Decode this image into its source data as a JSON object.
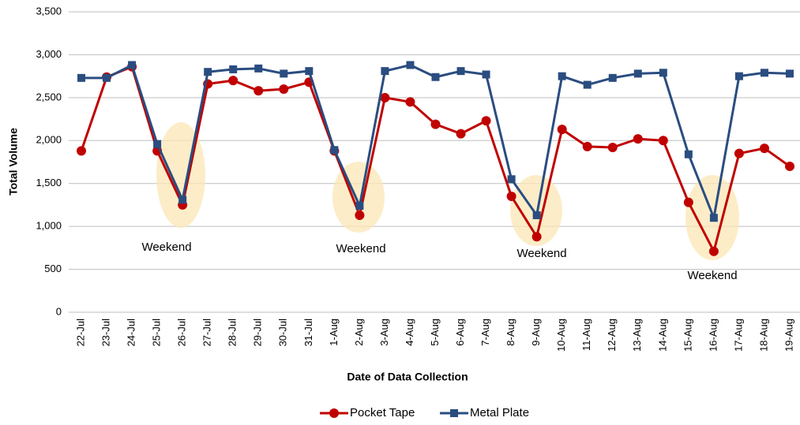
{
  "chart_data": {
    "type": "line",
    "y_label": "Total Volume",
    "x_label": "Date of Data Collection",
    "categories": [
      "22-Jul",
      "23-Jul",
      "24-Jul",
      "25-Jul",
      "26-Jul",
      "27-Jul",
      "28-Jul",
      "29-Jul",
      "30-Jul",
      "31-Jul",
      "1-Aug",
      "2-Aug",
      "3-Aug",
      "4-Aug",
      "5-Aug",
      "6-Aug",
      "7-Aug",
      "8-Aug",
      "9-Aug",
      "10-Aug",
      "11-Aug",
      "12-Aug",
      "13-Aug",
      "14-Aug",
      "15-Aug",
      "16-Aug",
      "17-Aug",
      "18-Aug",
      "19-Aug"
    ],
    "series": [
      {
        "name": "Pocket Tape",
        "color": "#c00000",
        "marker": "circle",
        "values": [
          1880,
          2740,
          2860,
          1880,
          1250,
          2660,
          2700,
          2580,
          2600,
          2680,
          1880,
          1130,
          2500,
          2450,
          2190,
          2080,
          2230,
          1350,
          880,
          2130,
          1930,
          1920,
          2020,
          2000,
          1280,
          710,
          1850,
          1910,
          1700
        ]
      },
      {
        "name": "Metal Plate",
        "color": "#2a4d80",
        "marker": "square",
        "values": [
          2730,
          2730,
          2880,
          1960,
          1310,
          2800,
          2830,
          2840,
          2780,
          2810,
          1890,
          1240,
          2810,
          2880,
          2740,
          2810,
          2770,
          1550,
          1130,
          2750,
          2650,
          2730,
          2780,
          2790,
          1840,
          1100,
          2750,
          2790,
          2780
        ]
      }
    ],
    "ylim": [
      0,
      3500
    ],
    "yticks": [
      0,
      500,
      {
        "value": 1000,
        "label": "1,000"
      },
      {
        "value": 1500,
        "label": "1,500"
      },
      {
        "value": 2000,
        "label": "2,000"
      },
      {
        "value": 2500,
        "label": "2,500"
      },
      {
        "value": 3000,
        "label": "3,000"
      },
      {
        "value": 3500,
        "label": "3,500"
      }
    ],
    "grid": true,
    "legend": "bottom",
    "annotations": [
      "Weekend",
      "Weekend",
      "Weekend",
      "Weekend"
    ]
  }
}
